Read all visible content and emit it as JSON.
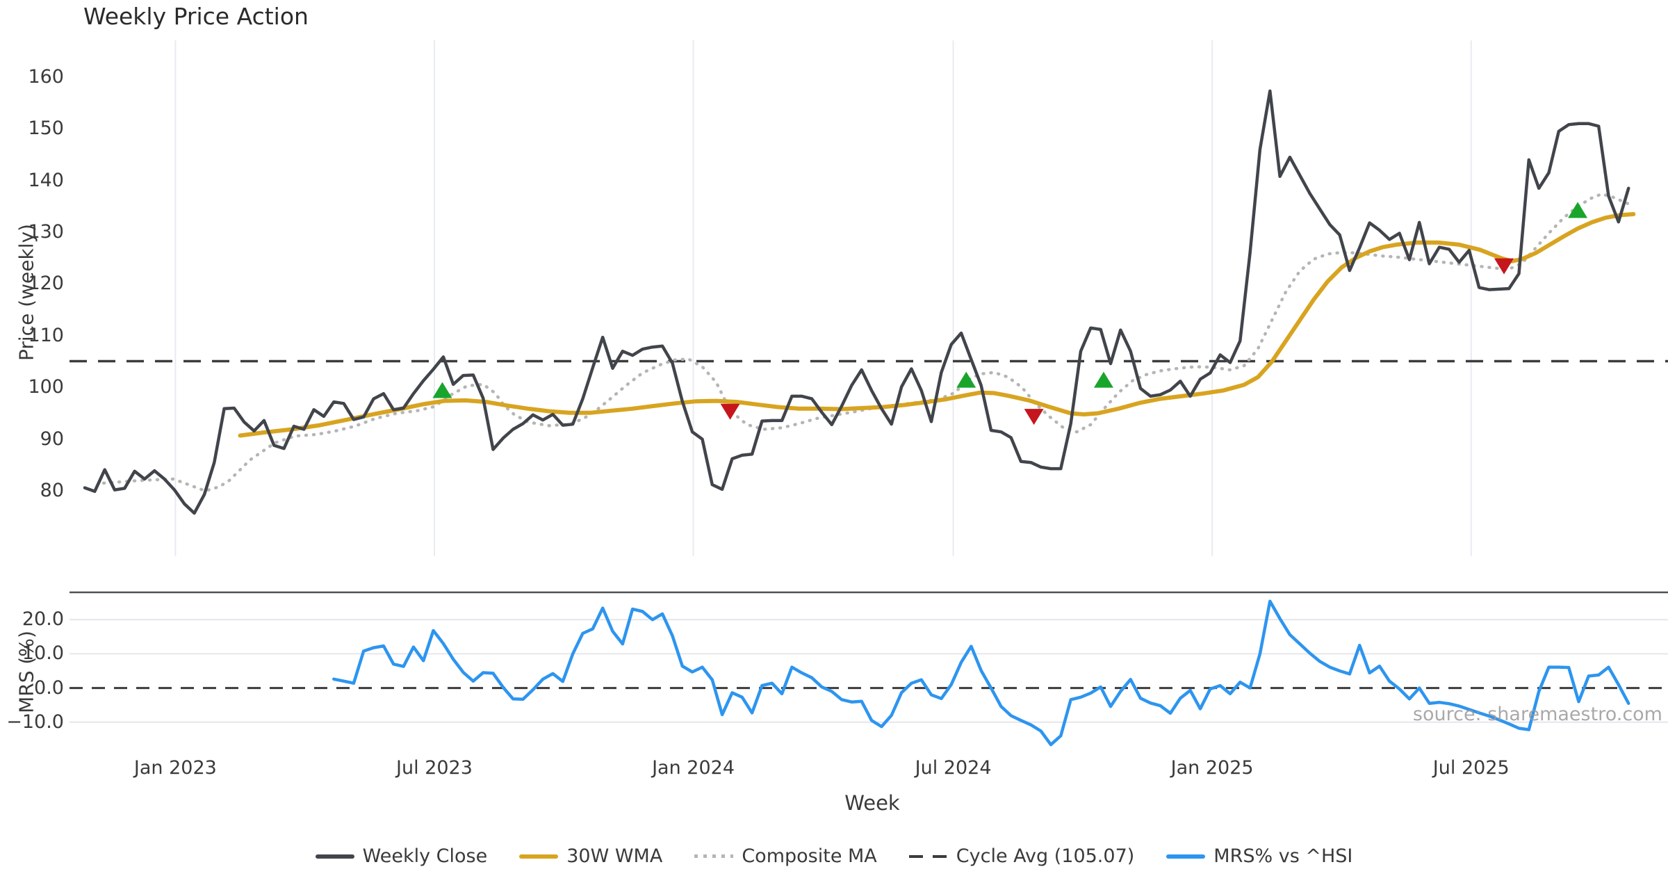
{
  "chart": {
    "title": "Weekly Price Action",
    "price_axis_label": "Price (weekly)",
    "mrs_axis_label": "MRS (%)",
    "x_axis_label": "Week",
    "source_note": "source: sharemaestro.com",
    "legend": {
      "weekly_close": "Weekly Close",
      "wma30": "30W WMA",
      "composite": "Composite MA",
      "cycle_avg": "Cycle Avg (105.07)",
      "mrs": "MRS% vs ^HSI"
    },
    "colors": {
      "weekly_close": "#41454b",
      "wma30": "#d8a420",
      "composite": "#b5b5b5",
      "cycle_avg": "#3c3c3c",
      "mrs": "#2d95ef",
      "buy_marker": "#19a52c",
      "sell_marker": "#c5161d",
      "grid": "#e9ebf2",
      "mrs_grid": "#e6e6ec",
      "spine": "#4d5156",
      "text": "#3a3a3a"
    }
  },
  "chart_data": {
    "type": "line",
    "title": "Weekly Price Action",
    "xlabel": "Week",
    "ylabel_top": "Price (weekly)",
    "ylabel_bottom": "MRS (%)",
    "legend_position": "bottom-center",
    "cycle_avg": 105.07,
    "price_axis": {
      "ticks": [
        80,
        90,
        100,
        110,
        120,
        130,
        140,
        150,
        160
      ],
      "ylim": [
        74.5,
        167.5
      ]
    },
    "mrs_axis": {
      "ticks": [
        {
          "v": 20,
          "label": "20.0"
        },
        {
          "v": 10,
          "label": "10.0"
        },
        {
          "v": 0,
          "label": "0.0"
        },
        {
          "v": -10,
          "label": "−10.0"
        }
      ],
      "ylim": [
        -18,
        28
      ]
    },
    "x_ticks": [
      {
        "week": 9.1,
        "label": "Jan 2023"
      },
      {
        "week": 35.1,
        "label": "Jul 2023"
      },
      {
        "week": 61.1,
        "label": "Jan 2024"
      },
      {
        "week": 87.2,
        "label": "Jul 2024"
      },
      {
        "week": 113.2,
        "label": "Jan 2025"
      },
      {
        "week": 139.2,
        "label": "Jul 2025"
      }
    ],
    "weekly_close": [
      80.6,
      79.9,
      84.1,
      80.2,
      80.5,
      83.8,
      82.3,
      83.9,
      82.3,
      80.2,
      77.5,
      75.7,
      79.3,
      85.5,
      95.9,
      96.0,
      93.3,
      91.6,
      93.6,
      88.8,
      88.2,
      92.5,
      91.9,
      95.7,
      94.4,
      97.2,
      96.9,
      93.8,
      94.3,
      97.8,
      98.8,
      95.7,
      96.0,
      98.8,
      101.3,
      103.5,
      105.9,
      100.6,
      102.3,
      102.4,
      97.9,
      88.0,
      90.2,
      91.9,
      93.0,
      94.7,
      93.7,
      94.8,
      92.7,
      92.9,
      97.8,
      103.8,
      109.7,
      103.7,
      107.0,
      106.2,
      107.4,
      107.8,
      108.0,
      104.7,
      97.3,
      91.4,
      90.0,
      81.2,
      80.3,
      86.2,
      86.9,
      87.1,
      93.5,
      93.6,
      93.6,
      98.3,
      98.3,
      97.8,
      95.2,
      92.8,
      96.4,
      100.4,
      103.4,
      99.4,
      95.9,
      92.9,
      100.1,
      103.6,
      99.4,
      93.4,
      102.9,
      108.3,
      110.5,
      105.4,
      100.4,
      91.7,
      91.4,
      90.3,
      85.7,
      85.5,
      84.6,
      84.3,
      84.3,
      93.0,
      107.0,
      111.5,
      111.2,
      104.6,
      111.1,
      107.0,
      99.8,
      98.3,
      98.6,
      99.5,
      101.2,
      98.3,
      101.6,
      102.8,
      106.3,
      104.8,
      109.0,
      126.0,
      146.0,
      157.3,
      140.8,
      144.5,
      141.0,
      137.5,
      134.5,
      131.5,
      129.5,
      122.6,
      127.0,
      131.8,
      130.4,
      128.6,
      129.8,
      124.7,
      131.9,
      123.9,
      127.1,
      126.7,
      124.2,
      126.5,
      119.3,
      118.9,
      119.0,
      119.1,
      122.0,
      144.0,
      138.5,
      141.5,
      149.5,
      150.8,
      151.0,
      151.0,
      150.5,
      137.0,
      132.0,
      138.5
    ],
    "wma30": [
      [
        15.6,
        90.7
      ],
      [
        18.0,
        91.3
      ],
      [
        20.8,
        91.9
      ],
      [
        23.6,
        92.7
      ],
      [
        26.4,
        93.8
      ],
      [
        29.2,
        94.9
      ],
      [
        31.6,
        95.8
      ],
      [
        34.1,
        96.8
      ],
      [
        36.1,
        97.4
      ],
      [
        38.2,
        97.5
      ],
      [
        40.3,
        97.2
      ],
      [
        42.4,
        96.5
      ],
      [
        44.5,
        95.9
      ],
      [
        46.6,
        95.4
      ],
      [
        48.7,
        95.1
      ],
      [
        50.8,
        95.1
      ],
      [
        52.9,
        95.5
      ],
      [
        55.0,
        95.9
      ],
      [
        57.1,
        96.4
      ],
      [
        59.2,
        96.9
      ],
      [
        61.3,
        97.3
      ],
      [
        63.4,
        97.4
      ],
      [
        65.5,
        97.2
      ],
      [
        67.5,
        96.7
      ],
      [
        69.6,
        96.2
      ],
      [
        71.7,
        95.9
      ],
      [
        73.8,
        95.9
      ],
      [
        75.9,
        95.8
      ],
      [
        78.0,
        96.0
      ],
      [
        80.1,
        96.2
      ],
      [
        82.2,
        96.6
      ],
      [
        84.3,
        97.1
      ],
      [
        86.4,
        97.7
      ],
      [
        88.5,
        98.5
      ],
      [
        89.9,
        99.0
      ],
      [
        91.3,
        98.9
      ],
      [
        92.7,
        98.4
      ],
      [
        94.8,
        97.5
      ],
      [
        96.9,
        96.2
      ],
      [
        99.0,
        95.0
      ],
      [
        100.3,
        94.8
      ],
      [
        101.7,
        95.0
      ],
      [
        103.8,
        95.9
      ],
      [
        105.9,
        97.0
      ],
      [
        108.0,
        97.8
      ],
      [
        110.1,
        98.3
      ],
      [
        112.2,
        98.8
      ],
      [
        114.3,
        99.4
      ],
      [
        116.4,
        100.5
      ],
      [
        117.8,
        102.0
      ],
      [
        119.2,
        105.0
      ],
      [
        120.6,
        109.0
      ],
      [
        122.0,
        113.0
      ],
      [
        123.4,
        117.0
      ],
      [
        124.8,
        120.5
      ],
      [
        126.2,
        123.2
      ],
      [
        127.6,
        125.0
      ],
      [
        129.0,
        126.3
      ],
      [
        130.3,
        127.1
      ],
      [
        131.7,
        127.6
      ],
      [
        133.8,
        128.0
      ],
      [
        135.9,
        128.0
      ],
      [
        138.0,
        127.6
      ],
      [
        140.1,
        126.6
      ],
      [
        142.2,
        125.0
      ],
      [
        143.3,
        124.4
      ],
      [
        144.3,
        124.8
      ],
      [
        145.7,
        126.0
      ],
      [
        147.1,
        127.6
      ],
      [
        148.5,
        129.2
      ],
      [
        149.9,
        130.7
      ],
      [
        151.3,
        131.9
      ],
      [
        152.7,
        132.8
      ],
      [
        154.1,
        133.3
      ],
      [
        155.5,
        133.5
      ]
    ],
    "composite_ma": [
      [
        1.9,
        81.5
      ],
      [
        5.4,
        82.0
      ],
      [
        8.9,
        82.3
      ],
      [
        10.7,
        81.0
      ],
      [
        12.1,
        80.0
      ],
      [
        13.5,
        80.8
      ],
      [
        14.5,
        82.0
      ],
      [
        16.6,
        86.0
      ],
      [
        19.1,
        89.3
      ],
      [
        21.1,
        90.6
      ],
      [
        23.2,
        90.9
      ],
      [
        25.0,
        91.5
      ],
      [
        27.1,
        92.5
      ],
      [
        29.2,
        94.0
      ],
      [
        31.3,
        95.0
      ],
      [
        33.4,
        95.5
      ],
      [
        35.1,
        96.3
      ],
      [
        36.8,
        98.6
      ],
      [
        38.4,
        100.3
      ],
      [
        40.0,
        100.6
      ],
      [
        41.2,
        98.9
      ],
      [
        42.1,
        96.5
      ],
      [
        43.1,
        94.8
      ],
      [
        44.5,
        93.3
      ],
      [
        46.6,
        92.6
      ],
      [
        48.7,
        92.9
      ],
      [
        50.1,
        94.0
      ],
      [
        51.5,
        95.8
      ],
      [
        52.9,
        98.0
      ],
      [
        54.3,
        100.3
      ],
      [
        56.0,
        102.8
      ],
      [
        57.8,
        104.4
      ],
      [
        59.2,
        105.3
      ],
      [
        60.6,
        105.5
      ],
      [
        62.0,
        104.0
      ],
      [
        63.4,
        101.0
      ],
      [
        64.8,
        95.5
      ],
      [
        66.5,
        92.8
      ],
      [
        68.2,
        91.9
      ],
      [
        70.0,
        92.2
      ],
      [
        71.7,
        93.0
      ],
      [
        73.5,
        94.0
      ],
      [
        75.2,
        94.6
      ],
      [
        77.3,
        95.3
      ],
      [
        79.4,
        96.1
      ],
      [
        81.5,
        96.6
      ],
      [
        83.6,
        97.1
      ],
      [
        85.7,
        97.7
      ],
      [
        87.4,
        99.0
      ],
      [
        88.5,
        101.3
      ],
      [
        89.9,
        102.6
      ],
      [
        91.3,
        102.9
      ],
      [
        92.7,
        102.0
      ],
      [
        94.1,
        100.0
      ],
      [
        95.5,
        96.8
      ],
      [
        96.9,
        94.3
      ],
      [
        98.2,
        92.3
      ],
      [
        99.6,
        91.4
      ],
      [
        101.0,
        92.8
      ],
      [
        102.4,
        96.0
      ],
      [
        103.8,
        99.0
      ],
      [
        105.2,
        101.3
      ],
      [
        106.6,
        102.5
      ],
      [
        108.0,
        103.2
      ],
      [
        109.4,
        103.6
      ],
      [
        110.8,
        103.9
      ],
      [
        112.2,
        104.0
      ],
      [
        113.6,
        103.8
      ],
      [
        115.0,
        103.4
      ],
      [
        116.4,
        104.2
      ],
      [
        117.8,
        107.5
      ],
      [
        119.2,
        113.0
      ],
      [
        120.6,
        118.5
      ],
      [
        122.0,
        122.5
      ],
      [
        123.4,
        124.8
      ],
      [
        124.8,
        125.8
      ],
      [
        126.2,
        126.1
      ],
      [
        127.6,
        126.0
      ],
      [
        129.0,
        125.7
      ],
      [
        130.3,
        125.4
      ],
      [
        131.7,
        125.2
      ],
      [
        133.1,
        124.9
      ],
      [
        134.5,
        124.6
      ],
      [
        135.9,
        124.3
      ],
      [
        137.3,
        124.0
      ],
      [
        138.7,
        123.7
      ],
      [
        140.1,
        123.4
      ],
      [
        141.5,
        123.1
      ],
      [
        142.9,
        122.8
      ],
      [
        144.3,
        124.0
      ],
      [
        145.7,
        127.0
      ],
      [
        147.1,
        130.0
      ],
      [
        148.5,
        132.8
      ],
      [
        149.9,
        135.0
      ],
      [
        151.3,
        136.6
      ],
      [
        152.3,
        137.4
      ],
      [
        153.4,
        136.8
      ],
      [
        155.1,
        135.4
      ]
    ],
    "mrs_pct": {
      "start_week": 25,
      "values": [
        2.6,
        2.0,
        1.4,
        10.8,
        11.8,
        12.3,
        7.0,
        6.3,
        12.0,
        8.0,
        16.8,
        13.0,
        8.4,
        4.6,
        2.0,
        4.5,
        4.3,
        0.2,
        -3.2,
        -3.3,
        -0.5,
        2.6,
        4.2,
        1.9,
        10.0,
        16.0,
        17.3,
        23.4,
        16.6,
        12.9,
        23.1,
        22.4,
        20.0,
        21.7,
        15.3,
        6.4,
        4.7,
        6.1,
        2.4,
        -7.8,
        -1.4,
        -2.7,
        -7.3,
        0.7,
        1.4,
        -1.7,
        6.1,
        4.4,
        3.0,
        0.3,
        -1.0,
        -3.4,
        -4.1,
        -3.9,
        -9.5,
        -11.3,
        -8.0,
        -1.4,
        1.4,
        2.4,
        -2.0,
        -3.1,
        1.0,
        7.5,
        12.2,
        5.1,
        0.0,
        -5.4,
        -8.1,
        -9.5,
        -10.8,
        -12.6,
        -16.6,
        -14.0,
        -3.4,
        -2.7,
        -1.5,
        0.3,
        -5.4,
        -1.0,
        2.5,
        -3.0,
        -4.4,
        -5.2,
        -7.4,
        -3.0,
        -0.7,
        -6.1,
        -0.3,
        0.7,
        -1.7,
        1.7,
        0.0,
        10.0,
        25.4,
        20.3,
        15.6,
        12.9,
        10.2,
        7.8,
        6.1,
        5.0,
        4.1,
        12.5,
        4.4,
        6.4,
        2.0,
        -0.3,
        -3.2,
        0.0,
        -4.5,
        -4.2,
        -4.6,
        -5.3,
        -6.3,
        -7.3,
        -8.2,
        -9.3,
        -10.5,
        -11.8,
        -12.2,
        -1.0,
        6.1,
        6.1,
        6.0,
        -4.0,
        3.5,
        3.8,
        6.1,
        1.0,
        -4.5
      ]
    },
    "buy_signals": [
      [
        35.9,
        99.3
      ],
      [
        88.5,
        101.3
      ],
      [
        102.3,
        101.3
      ],
      [
        149.9,
        134.1
      ]
    ],
    "sell_signals": [
      [
        64.8,
        95.5
      ],
      [
        95.3,
        94.5
      ],
      [
        142.5,
        123.6
      ]
    ]
  }
}
